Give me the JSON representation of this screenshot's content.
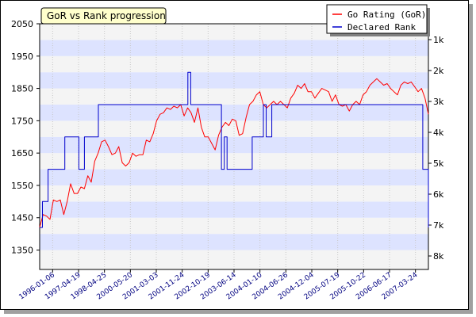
{
  "chart_data": {
    "type": "line",
    "title": "GoR vs Rank progression",
    "xlabel": "",
    "ylabel": "",
    "x_tick_labels": [
      "1996-01-06",
      "1997-04-19",
      "1998-04-25",
      "2000-05-20",
      "2001-03-03",
      "2001-11-24",
      "2002-10-19",
      "2003-06-14",
      "2004-01-10",
      "2004-06-26",
      "2004-12-04",
      "2005-07-19",
      "2005-10-22",
      "2006-06-17",
      "2007-03-24"
    ],
    "y_left": {
      "ticks": [
        1350,
        1450,
        1550,
        1650,
        1750,
        1850,
        1950,
        2050
      ],
      "range": [
        1290,
        2050
      ]
    },
    "y_right": {
      "tick_labels": [
        "1k",
        "2k",
        "3k",
        "4k",
        "5k",
        "6k",
        "7k",
        "8k"
      ]
    },
    "grid": true,
    "legend_position": "top-right",
    "series": [
      {
        "name": "Go Rating (GoR)",
        "color": "#ff0000",
        "axis": "left",
        "values": [
          1420,
          1460,
          1455,
          1445,
          1505,
          1500,
          1505,
          1460,
          1500,
          1555,
          1525,
          1525,
          1545,
          1540,
          1580,
          1560,
          1625,
          1650,
          1685,
          1690,
          1670,
          1645,
          1650,
          1670,
          1620,
          1610,
          1620,
          1650,
          1640,
          1645,
          1645,
          1690,
          1685,
          1710,
          1750,
          1770,
          1775,
          1790,
          1785,
          1795,
          1790,
          1800,
          1765,
          1790,
          1775,
          1745,
          1790,
          1730,
          1700,
          1700,
          1680,
          1660,
          1705,
          1730,
          1745,
          1735,
          1755,
          1750,
          1705,
          1710,
          1760,
          1800,
          1810,
          1830,
          1840,
          1800,
          1790,
          1800,
          1810,
          1800,
          1810,
          1800,
          1790,
          1820,
          1835,
          1860,
          1850,
          1865,
          1840,
          1840,
          1820,
          1835,
          1850,
          1845,
          1840,
          1810,
          1830,
          1800,
          1795,
          1800,
          1780,
          1800,
          1810,
          1800,
          1830,
          1840,
          1860,
          1870,
          1880,
          1870,
          1860,
          1865,
          1850,
          1840,
          1830,
          1860,
          1870,
          1865,
          1870,
          1855,
          1840,
          1850,
          1820,
          1770
        ]
      },
      {
        "name": "Declared Rank",
        "color": "#0000cc",
        "axis": "left",
        "values": [
          1420,
          1500,
          1500,
          1600,
          1600,
          1600,
          1600,
          1600,
          1600,
          1700,
          1700,
          1700,
          1700,
          1700,
          1600,
          1600,
          1700,
          1700,
          1700,
          1700,
          1700,
          1800,
          1800,
          1800,
          1800,
          1800,
          1800,
          1800,
          1800,
          1800,
          1800,
          1800,
          1800,
          1800,
          1800,
          1800,
          1800,
          1800,
          1800,
          1800,
          1800,
          1800,
          1800,
          1800,
          1800,
          1800,
          1800,
          1800,
          1800,
          1800,
          1800,
          1800,
          1800,
          1900,
          1800,
          1800,
          1800,
          1800,
          1800,
          1800,
          1800,
          1800,
          1800,
          1800,
          1800,
          1600,
          1700,
          1600,
          1600,
          1600,
          1600,
          1600,
          1600,
          1600,
          1600,
          1600,
          1700,
          1700,
          1700,
          1700,
          1800,
          1700,
          1700,
          1800,
          1800,
          1800,
          1800,
          1800,
          1800,
          1800,
          1800,
          1800,
          1800,
          1800,
          1800,
          1800,
          1800,
          1800,
          1800,
          1800,
          1800,
          1800,
          1800,
          1800,
          1800,
          1800,
          1800,
          1800,
          1800,
          1800,
          1800,
          1800,
          1800,
          1800,
          1800,
          1800,
          1800,
          1800,
          1800,
          1800,
          1800,
          1800,
          1800,
          1800,
          1800,
          1800,
          1800,
          1800,
          1800,
          1800,
          1800,
          1800,
          1800,
          1800,
          1800,
          1800,
          1800,
          1600,
          1600,
          1420
        ]
      }
    ]
  }
}
